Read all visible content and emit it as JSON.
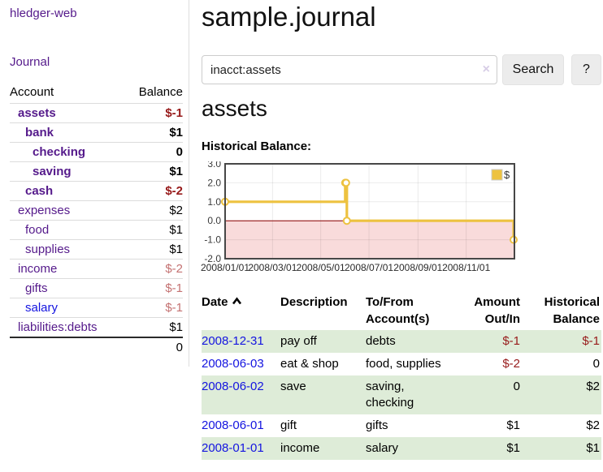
{
  "sidebar": {
    "app_link": "hledger-web",
    "journal_link": "Journal",
    "accounts_table": {
      "account_header": "Account",
      "balance_header": "Balance",
      "rows": [
        {
          "account": "assets",
          "balance": "$-1"
        },
        {
          "account": "bank",
          "balance": "$1"
        },
        {
          "account": "checking",
          "balance": "0"
        },
        {
          "account": "saving",
          "balance": "$1"
        },
        {
          "account": "cash",
          "balance": "$-2"
        },
        {
          "account": "expenses",
          "balance": "$2"
        },
        {
          "account": "food",
          "balance": "$1"
        },
        {
          "account": "supplies",
          "balance": "$1"
        },
        {
          "account": "income",
          "balance": "$-2"
        },
        {
          "account": "gifts",
          "balance": "$-1"
        },
        {
          "account": "salary",
          "balance": "$-1"
        },
        {
          "account": "liabilities:debts",
          "balance": "$1"
        }
      ],
      "total": "0"
    }
  },
  "header": {
    "title": "sample.journal"
  },
  "search": {
    "value": "inacct:assets",
    "clear_icon": "×",
    "button_label": "Search",
    "help_label": "?"
  },
  "register": {
    "heading": "assets",
    "chart_label": "Historical Balance:",
    "table": {
      "headers": [
        "Date",
        "Description",
        "To/From Account(s)",
        "Amount Out/In",
        "Historical Balance"
      ],
      "rows": [
        {
          "date": "2008-12-31",
          "description": "pay off",
          "accounts": "debts",
          "amount": "$-1",
          "balance": "$-1"
        },
        {
          "date": "2008-06-03",
          "description": "eat & shop",
          "accounts": "food, supplies",
          "amount": "$-2",
          "balance": "0"
        },
        {
          "date": "2008-06-02",
          "description": "save",
          "accounts": "saving, checking",
          "amount": "0",
          "balance": "$2"
        },
        {
          "date": "2008-06-01",
          "description": "gift",
          "accounts": "gifts",
          "amount": "$1",
          "balance": "$2"
        },
        {
          "date": "2008-01-01",
          "description": "income",
          "accounts": "salary",
          "amount": "$1",
          "balance": "$1"
        }
      ]
    }
  },
  "chart_data": {
    "type": "line",
    "title": "Historical Balance:",
    "step": true,
    "series": [
      {
        "name": "$",
        "color": "#edc240",
        "points": [
          [
            "2008-01-01",
            1
          ],
          [
            "2008-06-01",
            2
          ],
          [
            "2008-06-02",
            2
          ],
          [
            "2008-06-03",
            0
          ],
          [
            "2008-12-31",
            -1
          ]
        ]
      }
    ],
    "xrange": [
      "2008-01-01",
      "2009-01-01"
    ],
    "ylim": [
      -2,
      3
    ],
    "yticks": [
      3,
      2,
      1,
      0,
      -1,
      -2
    ],
    "xtick_labels": [
      "2008/01/01",
      "2008/03/01",
      "2008/05/01",
      "2008/07/01",
      "2008/09/01",
      "2008/11/01"
    ],
    "grid": true,
    "legend_position": "top-right",
    "negative_region_color": "#f9dbdb",
    "zero_line_color": "#8b0000",
    "border_color": "#474747"
  }
}
